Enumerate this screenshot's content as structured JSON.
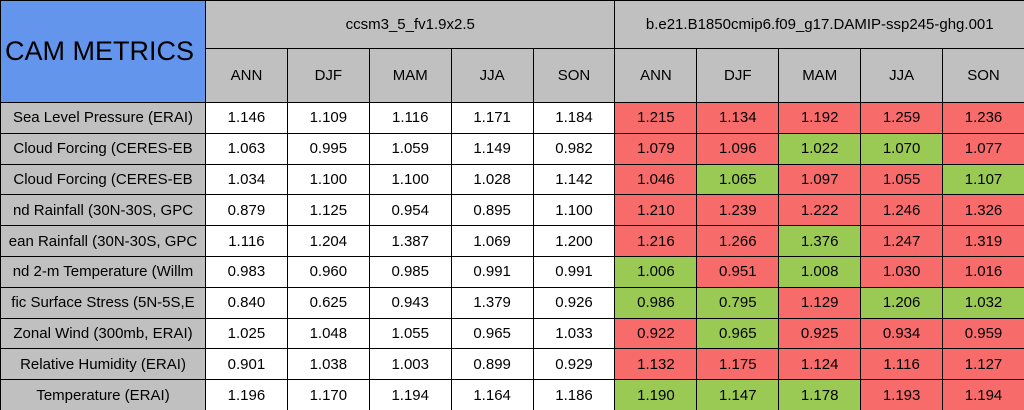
{
  "title": "CAM METRICS",
  "groups": [
    "ccsm3_5_fv1.9x2.5",
    "b.e21.B1850cmip6.f09_g17.DAMIP-ssp245-ghg.001"
  ],
  "columns": [
    "ANN",
    "DJF",
    "MAM",
    "JJA",
    "SON",
    "ANN",
    "DJF",
    "MAM",
    "JJA",
    "SON"
  ],
  "rows": [
    {
      "label": "Sea Level Pressure (ERAI)",
      "values": [
        "1.146",
        "1.109",
        "1.116",
        "1.171",
        "1.184",
        "1.215",
        "1.134",
        "1.192",
        "1.259",
        "1.236"
      ],
      "colors": [
        "#ffffff",
        "#ffffff",
        "#ffffff",
        "#ffffff",
        "#ffffff",
        "#f76b6b",
        "#f76b6b",
        "#f76b6b",
        "#f76b6b",
        "#f76b6b"
      ]
    },
    {
      "label": "Cloud Forcing (CERES-EB",
      "values": [
        "1.063",
        "0.995",
        "1.059",
        "1.149",
        "0.982",
        "1.079",
        "1.096",
        "1.022",
        "1.070",
        "1.077"
      ],
      "colors": [
        "#ffffff",
        "#ffffff",
        "#ffffff",
        "#ffffff",
        "#ffffff",
        "#f76b6b",
        "#f76b6b",
        "#9bca54",
        "#9bca54",
        "#f76b6b"
      ]
    },
    {
      "label": "Cloud Forcing (CERES-EB",
      "values": [
        "1.034",
        "1.100",
        "1.100",
        "1.028",
        "1.142",
        "1.046",
        "1.065",
        "1.097",
        "1.055",
        "1.107"
      ],
      "colors": [
        "#ffffff",
        "#ffffff",
        "#ffffff",
        "#ffffff",
        "#ffffff",
        "#f76b6b",
        "#9bca54",
        "#f76b6b",
        "#f76b6b",
        "#9bca54"
      ]
    },
    {
      "label": "nd Rainfall (30N-30S, GPC",
      "values": [
        "0.879",
        "1.125",
        "0.954",
        "0.895",
        "1.100",
        "1.210",
        "1.239",
        "1.222",
        "1.246",
        "1.326"
      ],
      "colors": [
        "#ffffff",
        "#ffffff",
        "#ffffff",
        "#ffffff",
        "#ffffff",
        "#f76b6b",
        "#f76b6b",
        "#f76b6b",
        "#f76b6b",
        "#f76b6b"
      ]
    },
    {
      "label": "ean Rainfall (30N-30S, GPC",
      "values": [
        "1.116",
        "1.204",
        "1.387",
        "1.069",
        "1.200",
        "1.216",
        "1.266",
        "1.376",
        "1.247",
        "1.319"
      ],
      "colors": [
        "#ffffff",
        "#ffffff",
        "#ffffff",
        "#ffffff",
        "#ffffff",
        "#f76b6b",
        "#f76b6b",
        "#9bca54",
        "#f76b6b",
        "#f76b6b"
      ]
    },
    {
      "label": "nd 2-m Temperature (Willm",
      "values": [
        "0.983",
        "0.960",
        "0.985",
        "0.991",
        "0.991",
        "1.006",
        "0.951",
        "1.008",
        "1.030",
        "1.016"
      ],
      "colors": [
        "#ffffff",
        "#ffffff",
        "#ffffff",
        "#ffffff",
        "#ffffff",
        "#9bca54",
        "#f76b6b",
        "#9bca54",
        "#f76b6b",
        "#f76b6b"
      ]
    },
    {
      "label": "fic Surface Stress (5N-5S,E",
      "values": [
        "0.840",
        "0.625",
        "0.943",
        "1.379",
        "0.926",
        "0.986",
        "0.795",
        "1.129",
        "1.206",
        "1.032"
      ],
      "colors": [
        "#ffffff",
        "#ffffff",
        "#ffffff",
        "#ffffff",
        "#ffffff",
        "#9bca54",
        "#9bca54",
        "#f76b6b",
        "#9bca54",
        "#9bca54"
      ]
    },
    {
      "label": "Zonal Wind (300mb, ERAI)",
      "values": [
        "1.025",
        "1.048",
        "1.055",
        "0.965",
        "1.033",
        "0.922",
        "0.965",
        "0.925",
        "0.934",
        "0.959"
      ],
      "colors": [
        "#ffffff",
        "#ffffff",
        "#ffffff",
        "#ffffff",
        "#ffffff",
        "#f76b6b",
        "#9bca54",
        "#f76b6b",
        "#f76b6b",
        "#f76b6b"
      ]
    },
    {
      "label": "Relative Humidity (ERAI)",
      "values": [
        "0.901",
        "1.038",
        "1.003",
        "0.899",
        "0.929",
        "1.132",
        "1.175",
        "1.124",
        "1.116",
        "1.127"
      ],
      "colors": [
        "#ffffff",
        "#ffffff",
        "#ffffff",
        "#ffffff",
        "#ffffff",
        "#f76b6b",
        "#f76b6b",
        "#f76b6b",
        "#f76b6b",
        "#f76b6b"
      ]
    },
    {
      "label": "Temperature (ERAI)",
      "values": [
        "1.196",
        "1.170",
        "1.194",
        "1.164",
        "1.186",
        "1.190",
        "1.147",
        "1.178",
        "1.193",
        "1.194"
      ],
      "colors": [
        "#ffffff",
        "#ffffff",
        "#ffffff",
        "#ffffff",
        "#ffffff",
        "#9bca54",
        "#9bca54",
        "#9bca54",
        "#f76b6b",
        "#f76b6b"
      ]
    }
  ]
}
